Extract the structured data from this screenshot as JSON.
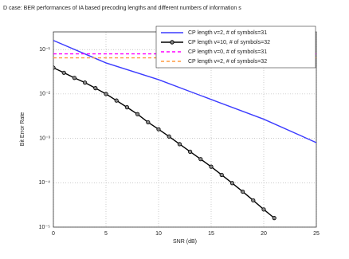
{
  "chart_data": {
    "type": "line",
    "title": "D case: BER performances of IA based precoding lengths and different numbers of information s",
    "xlabel": "SNR (dB)",
    "ylabel": "Bit Error Rate",
    "log_y": true,
    "grid": true,
    "legend": "upper right",
    "xlim": [
      0,
      25
    ],
    "xticks": [
      0,
      5,
      10,
      15,
      20,
      25
    ],
    "ylim": [
      1e-05,
      0.25
    ],
    "yticks": [
      {
        "value": 0.1,
        "label": "10⁻¹"
      },
      {
        "value": 0.01,
        "label": "10⁻²"
      },
      {
        "value": 0.001,
        "label": "10⁻³"
      },
      {
        "value": 0.0001,
        "label": "10⁻⁴"
      },
      {
        "value": 1e-05,
        "label": "10⁻⁵"
      }
    ],
    "series": [
      {
        "name": "CP length v=2,   # of symbols=31",
        "color": "#3b3bff",
        "style": "solid",
        "marker": false,
        "x": [
          0,
          5,
          10,
          15,
          20,
          25
        ],
        "values": [
          0.16,
          0.05,
          0.021,
          0.0075,
          0.0027,
          0.0008
        ]
      },
      {
        "name": "CP length v=10, # of symbols=32",
        "color": "#000000",
        "style": "solid",
        "marker": true,
        "x": [
          0,
          1,
          2,
          3,
          4,
          5,
          6,
          7,
          8,
          9,
          10,
          11,
          12,
          13,
          14,
          15,
          16,
          17,
          18,
          19,
          20,
          21
        ],
        "values": [
          0.039,
          0.03,
          0.023,
          0.018,
          0.0135,
          0.01,
          0.0071,
          0.005,
          0.0035,
          0.0023,
          0.0016,
          0.0011,
          0.00074,
          0.0005,
          0.00034,
          0.00023,
          0.00015,
          9.8e-05,
          6.3e-05,
          4e-05,
          2.5e-05,
          1.6e-05
        ]
      },
      {
        "name": "CP length v=0, # of symbols=31",
        "color": "#ff00ff",
        "style": "dashed",
        "marker": false,
        "x": [
          0,
          25
        ],
        "values": [
          0.08,
          0.08
        ]
      },
      {
        "name": "CP length v=2, # of symbols=32",
        "color": "#ff9a40",
        "style": "dashed",
        "marker": false,
        "x": [
          0,
          25
        ],
        "values": [
          0.065,
          0.065
        ]
      }
    ]
  }
}
